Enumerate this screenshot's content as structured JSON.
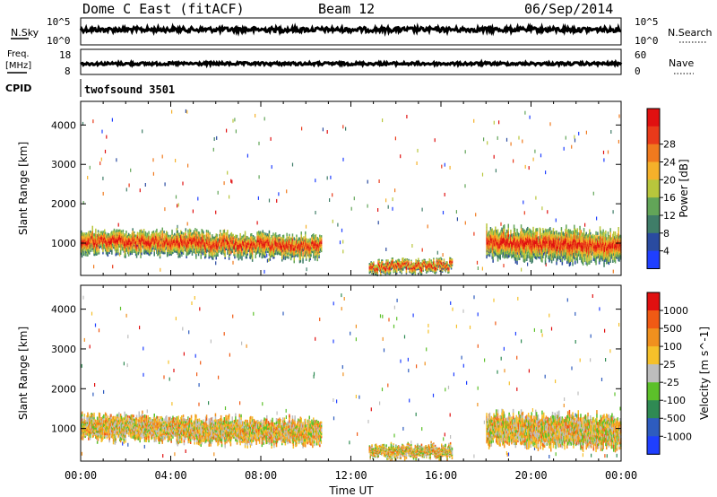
{
  "header": {
    "station": "Dome C East (fitACF)",
    "beam": "Beam 12",
    "date": "06/Sep/2014"
  },
  "top_panels": {
    "nsky_label": "N.Sky",
    "nsearch_label": "N.Search",
    "noise_ticks_left": [
      "10^5",
      "10^0"
    ],
    "noise_ticks_right": [
      "10^5",
      "10^0"
    ],
    "freq_label": "Freq.",
    "freq_unit": "[MHz]",
    "freq_ticks": [
      "18",
      "8"
    ],
    "nave_label": "Nave",
    "nave_ticks": [
      "60",
      "0"
    ],
    "cpid_label": "CPID",
    "cpid_value": "twofsound 3501"
  },
  "chart_data": [
    {
      "type": "heatmap",
      "panel": "power",
      "ylabel": "Slant Range [km]",
      "yticks": [
        1000,
        2000,
        3000,
        4000
      ],
      "ylim": [
        180,
        4600
      ],
      "colorbar_label": "Power [dB]",
      "colorbar_ticks": [
        "4",
        "8",
        "12",
        "16",
        "20",
        "24",
        "28"
      ],
      "colorbar_colors": [
        "#1f3fff",
        "#2a4ba0",
        "#3f7d68",
        "#62a558",
        "#b8c63c",
        "#f5b12a",
        "#f07a1e",
        "#e93a1a",
        "#e01010"
      ],
      "echo_bands": [
        {
          "t_start": 0.0,
          "t_end": 10.7,
          "range_center_start": 1050,
          "range_center_end": 900,
          "thickness_km": 500,
          "power_db": "12-28"
        },
        {
          "t_start": 12.8,
          "t_end": 16.5,
          "range_center_start": 400,
          "range_center_end": 450,
          "thickness_km": 250,
          "power_db": "20-30"
        },
        {
          "t_start": 18.0,
          "t_end": 24.0,
          "range_center_start": 1000,
          "range_center_end": 900,
          "thickness_km": 700,
          "power_db": "12-28"
        }
      ]
    },
    {
      "type": "heatmap",
      "panel": "velocity",
      "ylabel": "Slant Range [km]",
      "yticks": [
        1000,
        2000,
        3000,
        4000
      ],
      "ylim": [
        180,
        4600
      ],
      "colorbar_label": "Velocity [m s^-1]",
      "colorbar_ticks": [
        "1000",
        "500",
        "100",
        "25",
        "-25",
        "-100",
        "-500",
        "-1000"
      ],
      "colorbar_colors": [
        "#1f3fff",
        "#2e5cbf",
        "#2f8a53",
        "#5cc02a",
        "#bdbdbd",
        "#f5c02a",
        "#f0901e",
        "#f05a14",
        "#e01010"
      ],
      "echo_bands": [
        {
          "t_start": 0.0,
          "t_end": 10.7,
          "range_center_start": 1050,
          "range_center_end": 900,
          "thickness_km": 550,
          "velocity": "-500 to 100"
        },
        {
          "t_start": 12.8,
          "t_end": 16.5,
          "range_center_start": 400,
          "range_center_end": 450,
          "thickness_km": 250,
          "velocity": "-100"
        },
        {
          "t_start": 18.0,
          "t_end": 24.0,
          "range_center_start": 1000,
          "range_center_end": 900,
          "thickness_km": 700,
          "velocity": "-500 to 100"
        }
      ]
    }
  ],
  "time_axis": {
    "tick_labels": [
      "00:00",
      "04:00",
      "08:00",
      "12:00",
      "16:00",
      "20:00",
      "00:00"
    ],
    "label": "Time UT",
    "range_hours": [
      0,
      24
    ]
  }
}
